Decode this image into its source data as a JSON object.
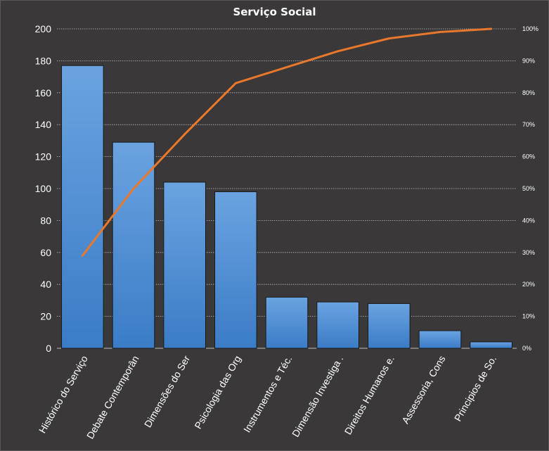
{
  "chart_data": {
    "type": "bar",
    "title": "Serviço Social",
    "categories": [
      "Histórico do Serviço",
      "Debate Contemporân",
      "Dimensões do Ser",
      "Psicologia das Org",
      "Instrumentos  e Téc.",
      "Dimensão Investiga .",
      "Direitos Humanos  e.",
      "Assessoria, Cons",
      "Principios de So."
    ],
    "series": [
      {
        "type": "bar",
        "values": [
          177,
          129,
          104,
          98,
          32,
          29,
          28,
          11,
          4
        ]
      },
      {
        "type": "line",
        "axis": "right",
        "values": [
          29,
          50,
          67,
          83,
          88,
          93,
          97,
          99,
          100
        ]
      }
    ],
    "ylim": [
      0,
      200
    ],
    "y_ticks": [
      "0",
      "20",
      "40",
      "60",
      "80",
      "100",
      "120",
      "140",
      "160",
      "180",
      "200"
    ],
    "y2lim": [
      0,
      100
    ],
    "y2_ticks": [
      "0%",
      "10%",
      "20%",
      "30%",
      "40%",
      "50%",
      "60%",
      "70%",
      "80%",
      "90%",
      "100%"
    ],
    "grid": true,
    "legend": "none",
    "colors": {
      "background": "#3a3838",
      "bar_top": "#6ba3e0",
      "bar_bottom": "#3a7cc6",
      "bar_edge": "#1a1a1a",
      "line": "#e8782c",
      "grid": "#bdbdbd",
      "text": "#ffffff"
    }
  }
}
